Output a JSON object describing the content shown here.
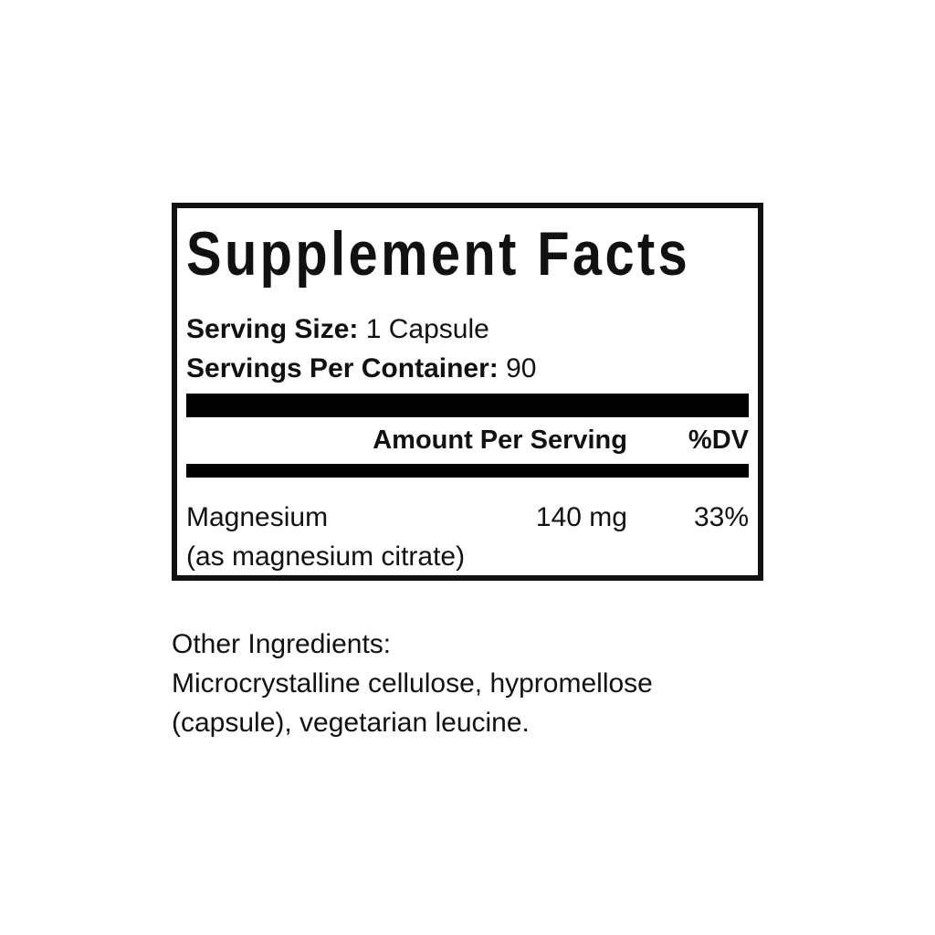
{
  "label": {
    "title": "Supplement Facts",
    "serving": {
      "size_label": "Serving Size:",
      "size_value": "1 Capsule",
      "per_container_label": "Servings Per Container:",
      "per_container_value": "90"
    },
    "columns": {
      "amount_header": "Amount Per Serving",
      "dv_header": "%DV"
    },
    "rows": [
      {
        "name": "Magnesium",
        "source": "(as magnesium citrate)",
        "amount": "140 mg",
        "dv": "33%"
      }
    ]
  },
  "other_ingredients": {
    "heading": "Other Ingredients:",
    "line1": "Microcrystalline cellulose, hypromellose",
    "line2": "(capsule), vegetarian leucine."
  },
  "colors": {
    "text": "#111111",
    "bar": "#000000",
    "border": "#111111",
    "background": "#ffffff"
  }
}
